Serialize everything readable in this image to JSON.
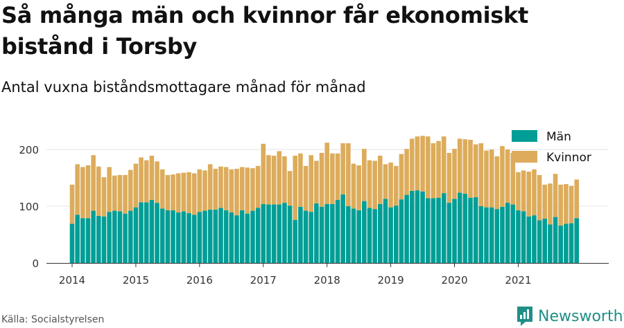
{
  "title": "Så många män och kvinnor får ekonomiskt bistånd i Torsby",
  "subtitle": "Antal vuxna biståndsmottagare månad för månad",
  "source": "Källa: Socialstyrelsen",
  "brand": {
    "name": "Newsworthy",
    "icon": "newsworthy-logo-icon"
  },
  "colors": {
    "man": "#009e96",
    "kvinnor": "#dcac5c",
    "grid": "#e3e3e3",
    "axis": "#333333"
  },
  "chart_data": {
    "type": "bar",
    "stacked": true,
    "title": "Så många män och kvinnor får ekonomiskt bistånd i Torsby",
    "subtitle": "Antal vuxna biståndsmottagare månad för månad",
    "x_start": "2014-01",
    "x_end": "2021-12",
    "x_ticks": [
      "2014",
      "2015",
      "2016",
      "2017",
      "2018",
      "2019",
      "2020",
      "2021"
    ],
    "y_ticks": [
      0,
      100,
      200
    ],
    "ylim": [
      0,
      230
    ],
    "grid": true,
    "legend_position": "top-right",
    "series": [
      {
        "name": "Män",
        "color": "#009e96",
        "values": [
          69,
          85,
          79,
          79,
          92,
          83,
          82,
          90,
          92,
          91,
          87,
          92,
          98,
          107,
          107,
          111,
          106,
          96,
          93,
          93,
          89,
          91,
          88,
          85,
          90,
          92,
          94,
          94,
          97,
          93,
          89,
          84,
          93,
          87,
          92,
          97,
          104,
          103,
          103,
          103,
          106,
          101,
          76,
          99,
          92,
          90,
          105,
          99,
          104,
          104,
          111,
          121,
          100,
          96,
          93,
          109,
          97,
          95,
          104,
          113,
          98,
          101,
          112,
          120,
          127,
          128,
          126,
          114,
          114,
          115,
          123,
          106,
          113,
          124,
          122,
          115,
          116,
          100,
          98,
          98,
          95,
          99,
          106,
          103,
          93,
          91,
          82,
          84,
          75,
          78,
          68,
          81,
          66,
          69,
          70,
          79
        ]
      },
      {
        "name": "Kvinnor",
        "values": [
          69,
          89,
          90,
          93,
          98,
          87,
          69,
          79,
          62,
          64,
          68,
          72,
          77,
          79,
          74,
          78,
          73,
          69,
          62,
          63,
          69,
          68,
          72,
          73,
          75,
          71,
          80,
          72,
          73,
          76,
          76,
          82,
          76,
          81,
          75,
          74,
          106,
          87,
          86,
          94,
          82,
          61,
          113,
          94,
          79,
          100,
          75,
          95,
          108,
          89,
          82,
          90,
          111,
          79,
          79,
          92,
          84,
          85,
          85,
          61,
          79,
          70,
          80,
          81,
          92,
          95,
          98,
          109,
          97,
          100,
          100,
          88,
          88,
          95,
          96,
          102,
          93,
          111,
          100,
          102,
          93,
          107,
          94,
          91,
          67,
          72,
          79,
          81,
          80,
          60,
          72,
          76,
          72,
          70,
          66,
          68
        ]
      }
    ]
  }
}
